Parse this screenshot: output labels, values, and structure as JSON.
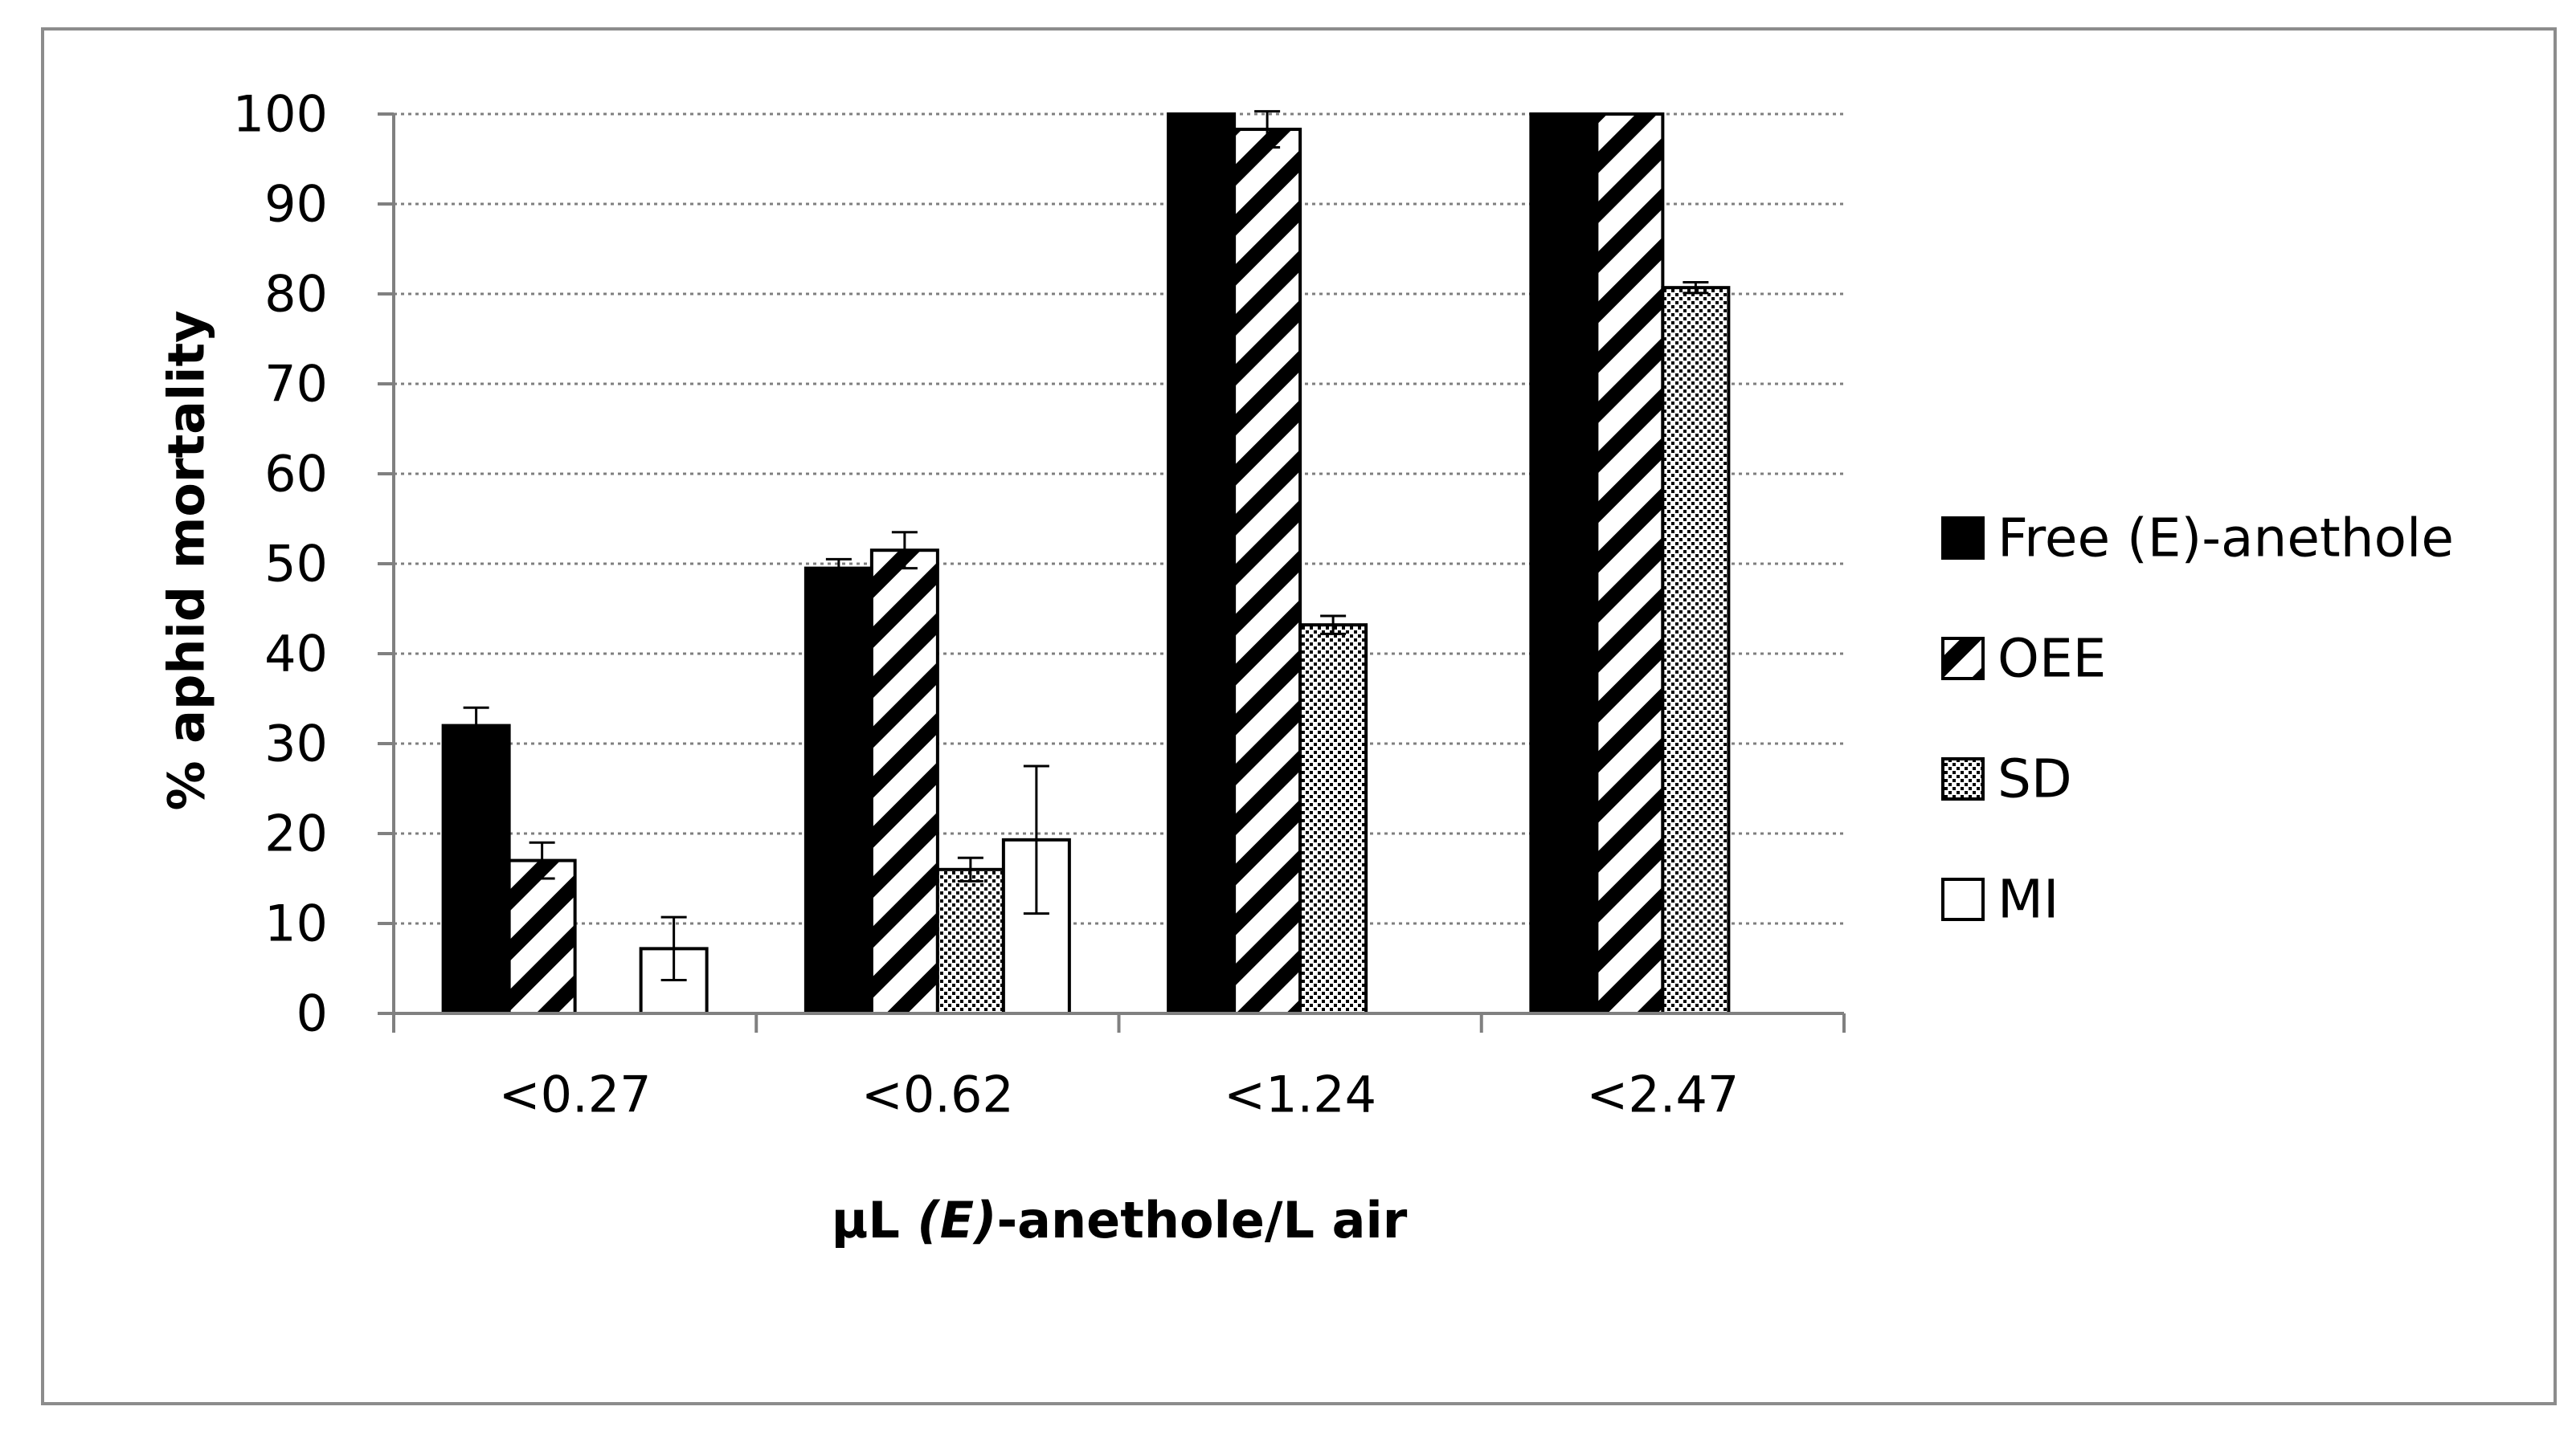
{
  "chart_data": {
    "type": "bar",
    "title": "",
    "xlabel_parts": [
      "µL ",
      "(E)",
      "-anethole/L air"
    ],
    "ylabel": "% aphid  mortality",
    "categories": [
      "<0.27",
      "<0.62",
      "<1.24",
      "<2.47"
    ],
    "ylim": [
      0,
      100
    ],
    "yticks": [
      0,
      10,
      20,
      30,
      40,
      50,
      60,
      70,
      80,
      90,
      100
    ],
    "grid": "horizontal-dotted",
    "legend_position": "right",
    "series": [
      {
        "name": "Free (E)-anethole",
        "pattern": "solid",
        "values": [
          32,
          49.5,
          100,
          100
        ],
        "errors": [
          2,
          1,
          0,
          0
        ]
      },
      {
        "name": "OEE",
        "pattern": "hatch",
        "values": [
          17,
          51.5,
          98.3,
          100
        ],
        "errors": [
          2,
          2,
          2,
          0
        ]
      },
      {
        "name": "SD",
        "pattern": "dots",
        "values": [
          null,
          16,
          43.2,
          80.7
        ],
        "errors": [
          null,
          1.3,
          1,
          0.6
        ]
      },
      {
        "name": "MI",
        "pattern": "empty",
        "values": [
          7.2,
          19.3,
          null,
          null
        ],
        "errors": [
          3.5,
          8.2,
          null,
          null
        ]
      }
    ]
  }
}
